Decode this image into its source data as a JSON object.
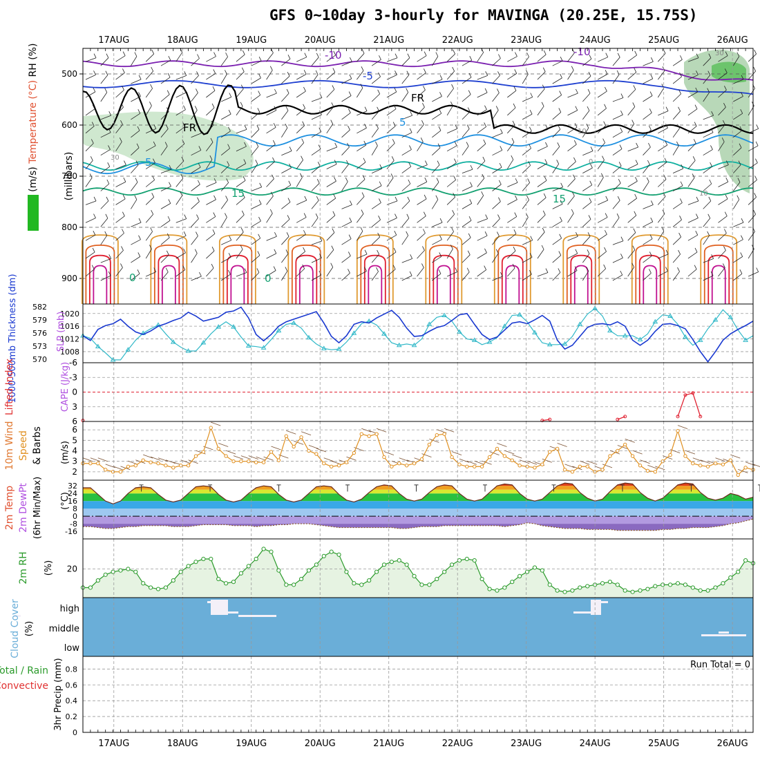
{
  "title": "GFS 0~10day 3-hourly for MAVINGA (20.25E, 15.75S)",
  "colors": {
    "purple": "#7a1fb0",
    "blue": "#1e3fd0",
    "lightblue": "#1e90e0",
    "teal": "#10b0a0",
    "green": "#12a070",
    "orange": "#e09a30",
    "darkorange": "#e06020",
    "red": "#e02030",
    "magenta": "#c01090",
    "cyan": "#30b8c8",
    "slp": "#1838d0",
    "wind": "#e09020",
    "rh": "#2a9a2a",
    "cloudblue": "#6aaed8",
    "grid": "#999999"
  },
  "chart_data": [
    {
      "id": "upper_air",
      "type": "contour",
      "ylabel_parts": [
        {
          "text": "Wind (m/s)",
          "color": "#000000"
        },
        {
          "text": "Temperature (°C)",
          "color": "#e05030"
        },
        {
          "text": "RH (%)",
          "color": "#000000"
        }
      ],
      "ylabel2": "(millibars)",
      "y_ticks": [
        500,
        600,
        700,
        800,
        900
      ],
      "ylim": [
        450,
        950
      ],
      "x_ticks": [
        "17AUG",
        "18AUG",
        "19AUG",
        "20AUG",
        "21AUG",
        "22AUG",
        "23AUG",
        "24AUG",
        "25AUG",
        "26AUG"
      ],
      "xlim_days": [
        16.55,
        26.3
      ],
      "contour_labels": [
        "-10",
        "-10",
        "-5",
        "FR",
        "FR",
        "5",
        "5",
        "15",
        "15",
        "30",
        "30",
        "10",
        "10",
        "0",
        "0",
        "0"
      ]
    },
    {
      "id": "slp_thickness",
      "type": "line",
      "ylabel": "SLP (mb)",
      "ylabel_left": "1000-500mb Thickness (dm)",
      "y_ticks_left": [
        570,
        573,
        576,
        579,
        582
      ],
      "y_ticks_right": [
        1008,
        1012,
        1016,
        1020
      ],
      "series": [
        {
          "name": "SLP",
          "values": [
            1013.0,
            1011.5,
            1015.0,
            1016.2,
            1016.8,
            1018.2,
            1016.0,
            1014.2,
            1013.4,
            1014.5,
            1016.0,
            1016.8,
            1017.8,
            1018.6,
            1020.4,
            1019.2,
            1017.6,
            1018.2,
            1018.8,
            1020.4,
            1020.8,
            1022.0,
            1018.6,
            1013.4,
            1011.4,
            1013.4,
            1016.0,
            1017.4,
            1018.2,
            1019.0,
            1019.8,
            1020.6,
            1017.0,
            1012.8,
            1010.8,
            1013.0,
            1016.6,
            1017.4,
            1017.0,
            1018.6,
            1019.8,
            1021.0,
            1018.8,
            1015.4,
            1012.8,
            1013.0,
            1014.4,
            1015.6,
            1016.2,
            1017.8,
            1019.6,
            1020.0,
            1016.6,
            1013.4,
            1011.8,
            1012.6,
            1014.8,
            1017.0,
            1017.4,
            1016.8,
            1018.0,
            1019.4,
            1017.6,
            1011.6,
            1008.8,
            1010.0,
            1012.8,
            1015.6,
            1016.6,
            1016.8,
            1016.4,
            1017.4,
            1016.0,
            1011.6,
            1010.0,
            1011.6,
            1014.4,
            1016.6,
            1016.8,
            1016.2,
            1015.2,
            1011.8,
            1008.0,
            1004.8,
            1008.0,
            1011.6,
            1013.6,
            1015.0,
            1016.2,
            1017.6
          ]
        },
        {
          "name": "Thickness",
          "values": [
            1013.0,
            1012.2,
            1009.6,
            1007.6,
            1005.4,
            1005.4,
            1008.6,
            1011.6,
            1013.8,
            1015.2,
            1016.4,
            1013.6,
            1011.0,
            1009.4,
            1008.2,
            1008.2,
            1010.8,
            1013.6,
            1015.8,
            1017.4,
            1015.8,
            1012.6,
            1009.8,
            1009.6,
            1009.2,
            1011.8,
            1014.6,
            1016.6,
            1017.0,
            1015.4,
            1012.4,
            1010.4,
            1009.0,
            1008.6,
            1008.8,
            1011.0,
            1013.8,
            1016.8,
            1017.6,
            1016.4,
            1013.6,
            1010.8,
            1010.0,
            1010.4,
            1010.0,
            1012.0,
            1016.6,
            1018.8,
            1019.4,
            1017.6,
            1014.2,
            1012.0,
            1011.6,
            1010.2,
            1011.0,
            1012.4,
            1016.0,
            1019.4,
            1019.6,
            1017.4,
            1014.0,
            1010.8,
            1010.2,
            1010.2,
            1010.4,
            1012.8,
            1016.6,
            1019.8,
            1021.6,
            1019.2,
            1014.6,
            1013.0,
            1013.0,
            1013.0,
            1011.8,
            1013.6,
            1017.4,
            1019.6,
            1019.2,
            1016.6,
            1012.6,
            1010.0,
            1011.6,
            1015.2,
            1018.0,
            1021.2,
            1018.8,
            1014.8,
            1011.6,
            1013.0
          ]
        }
      ]
    },
    {
      "id": "stability",
      "type": "line",
      "ylabel_parts": [
        {
          "text": "Lifted Index",
          "color": "#e03030"
        },
        {
          "text": "CAPE (J/kg)",
          "color": "#b050e0"
        }
      ],
      "y_ticks": [
        "-6",
        "-3",
        "0",
        "3",
        "6"
      ],
      "ylim": [
        6,
        -6
      ],
      "series": [
        {
          "name": "Lifted Index",
          "values": [
            5.8,
            null,
            null,
            null,
            null,
            null,
            null,
            null,
            null,
            null,
            null,
            null,
            null,
            null,
            null,
            null,
            null,
            null,
            null,
            null,
            null,
            null,
            null,
            null,
            null,
            null,
            null,
            null,
            null,
            null,
            null,
            null,
            null,
            null,
            null,
            null,
            null,
            null,
            null,
            null,
            null,
            null,
            null,
            null,
            null,
            null,
            null,
            null,
            null,
            null,
            null,
            null,
            null,
            null,
            null,
            null,
            null,
            null,
            null,
            null,
            null,
            5.8,
            5.6,
            null,
            null,
            null,
            null,
            null,
            null,
            null,
            null,
            5.6,
            5.0,
            null,
            null,
            null,
            null,
            null,
            null,
            5.0,
            0.6,
            0.2,
            5.0,
            null,
            null,
            null,
            null,
            null,
            null,
            null
          ]
        }
      ]
    },
    {
      "id": "wind10m",
      "type": "line",
      "ylabel_parts": [
        {
          "text": "10m Wind",
          "color": "#e07830"
        },
        {
          "text": "Speed",
          "color": "#e09020"
        },
        {
          "text": "& Barbs",
          "color": "#000000"
        }
      ],
      "ylabel2": "(m/s)",
      "y_ticks": [
        2,
        3,
        4,
        5,
        6
      ],
      "series": [
        {
          "name": "10m Wind Speed",
          "values": [
            2.8,
            2.8,
            2.8,
            2.2,
            2.0,
            2.0,
            2.5,
            2.6,
            3.1,
            2.9,
            2.8,
            2.6,
            2.4,
            2.6,
            2.6,
            3.5,
            3.9,
            6.2,
            4.2,
            3.5,
            3.0,
            3.0,
            3.0,
            2.9,
            2.9,
            3.9,
            3.1,
            5.4,
            4.4,
            5.3,
            4.0,
            3.7,
            2.8,
            2.5,
            2.6,
            2.9,
            3.8,
            5.6,
            5.4,
            5.6,
            3.4,
            2.5,
            2.8,
            2.6,
            2.8,
            3.2,
            4.6,
            5.5,
            5.6,
            3.4,
            2.7,
            2.5,
            2.5,
            2.5,
            3.4,
            4.2,
            3.5,
            3.1,
            2.6,
            2.5,
            2.4,
            2.7,
            3.9,
            4.2,
            2.2,
            2.0,
            2.5,
            2.5,
            2.0,
            2.2,
            3.5,
            4.0,
            4.6,
            3.5,
            2.6,
            2.1,
            2.0,
            3.0,
            3.6,
            5.9,
            3.5,
            2.8,
            2.6,
            2.5,
            2.8,
            2.7,
            3.1,
            1.7,
            2.4,
            2.2
          ]
        }
      ]
    },
    {
      "id": "temp2m",
      "type": "area",
      "ylabel_parts": [
        {
          "text": "2m Temp",
          "color": "#e05030"
        },
        {
          "text": "2m DewPt",
          "color": "#b050e0"
        },
        {
          "text": "(6hr Min/Max)",
          "color": "#000000"
        }
      ],
      "ylabel2": "(°C)",
      "y_ticks": [
        -16,
        -8,
        0,
        8,
        16,
        24,
        32
      ],
      "series": [
        {
          "name": "2m Temp",
          "values": [
            30,
            30,
            23,
            16,
            13,
            16,
            24,
            30,
            31,
            30,
            23,
            17,
            15,
            17,
            24,
            31,
            32,
            31,
            23,
            17,
            15,
            17,
            24,
            30,
            32,
            31,
            23,
            17,
            15,
            17,
            24,
            31,
            32,
            31,
            23,
            17,
            15,
            18,
            25,
            31,
            33,
            32,
            24,
            18,
            16,
            18,
            25,
            31,
            33,
            32,
            24,
            18,
            16,
            18,
            25,
            32,
            34,
            33,
            24,
            18,
            16,
            18,
            25,
            32,
            35,
            34,
            25,
            19,
            16,
            18,
            26,
            33,
            35,
            34,
            25,
            19,
            16,
            19,
            26,
            33,
            35,
            34,
            25,
            19,
            17,
            19,
            24,
            22,
            18,
            20
          ]
        },
        {
          "name": "2m DewPt",
          "values": [
            -11,
            -11,
            -12,
            -13,
            -13,
            -12,
            -11,
            -11,
            -10,
            -10,
            -10,
            -10,
            -11,
            -11,
            -11,
            -10,
            -9,
            -9,
            -9,
            -9,
            -10,
            -10,
            -10,
            -11,
            -10,
            -10,
            -9,
            -9,
            -8,
            -8,
            -8,
            -9,
            -10,
            -11,
            -12,
            -12,
            -12,
            -12,
            -12,
            -12,
            -12,
            -12,
            -13,
            -13,
            -12,
            -11,
            -11,
            -11,
            -10,
            -10,
            -10,
            -10,
            -10,
            -10,
            -10,
            -10,
            -11,
            -10,
            -9,
            -7,
            -8,
            -10,
            -11,
            -12,
            -13,
            -13,
            -13,
            -14,
            -14,
            -14,
            -14,
            -15,
            -15,
            -15,
            -15,
            -15,
            -15,
            -14,
            -14,
            -13,
            -13,
            -12,
            -12,
            -12,
            -11,
            -10,
            -8,
            -7,
            -5,
            -3
          ]
        }
      ]
    },
    {
      "id": "rh2m",
      "type": "area",
      "ylabel": "2m RH",
      "ylabel2": "(%)",
      "y_ticks": [
        20
      ],
      "ylim": [
        0,
        41
      ],
      "series": [
        {
          "name": "2m RH",
          "values": [
            7,
            7,
            12,
            16,
            18,
            19,
            20,
            18,
            10,
            7,
            6,
            7,
            12,
            18,
            22,
            25,
            27,
            27,
            13,
            10,
            11,
            17,
            22,
            27,
            34,
            32,
            19,
            9,
            9,
            13,
            19,
            23,
            29,
            32,
            30,
            18,
            10,
            9,
            12,
            18,
            23,
            25,
            26,
            23,
            15,
            9,
            9,
            13,
            18,
            23,
            26,
            27,
            26,
            13,
            6,
            5,
            7,
            11,
            15,
            18,
            21,
            19,
            9,
            5,
            4,
            5,
            7,
            8,
            9,
            10,
            11,
            9,
            5,
            4,
            5,
            6,
            8,
            9,
            9,
            10,
            9,
            7,
            5,
            5,
            7,
            10,
            14,
            18,
            26,
            24
          ]
        }
      ]
    },
    {
      "id": "cloud",
      "type": "area",
      "ylabel": "Cloud Cover",
      "ylabel2": "(%)",
      "y_ticks": [
        "high",
        "middle",
        "low"
      ]
    },
    {
      "id": "precip",
      "type": "bar",
      "ylabel_parts": [
        {
          "text": "Total / Rain",
          "color": "#2a9a2a"
        },
        {
          "text": "Convective",
          "color": "#e03030"
        }
      ],
      "ylabel2": "3hr Precip (mm)",
      "y_ticks": [
        "0",
        "0.2",
        "0.4",
        "0.6",
        "0.8"
      ],
      "ylim": [
        0,
        0.96
      ],
      "annotation": "Run Total = 0",
      "values": [
        0,
        0,
        0,
        0,
        0,
        0,
        0,
        0,
        0,
        0,
        0,
        0,
        0,
        0,
        0,
        0,
        0,
        0,
        0,
        0,
        0,
        0,
        0,
        0,
        0,
        0,
        0,
        0,
        0,
        0,
        0,
        0,
        0,
        0,
        0,
        0,
        0,
        0,
        0,
        0,
        0,
        0,
        0,
        0,
        0,
        0,
        0,
        0,
        0,
        0,
        0,
        0,
        0,
        0,
        0,
        0,
        0,
        0,
        0,
        0,
        0,
        0,
        0,
        0,
        0,
        0,
        0,
        0,
        0,
        0,
        0,
        0,
        0,
        0,
        0,
        0,
        0,
        0,
        0,
        0,
        0,
        0,
        0,
        0,
        0,
        0,
        0,
        0,
        0,
        0
      ]
    }
  ]
}
